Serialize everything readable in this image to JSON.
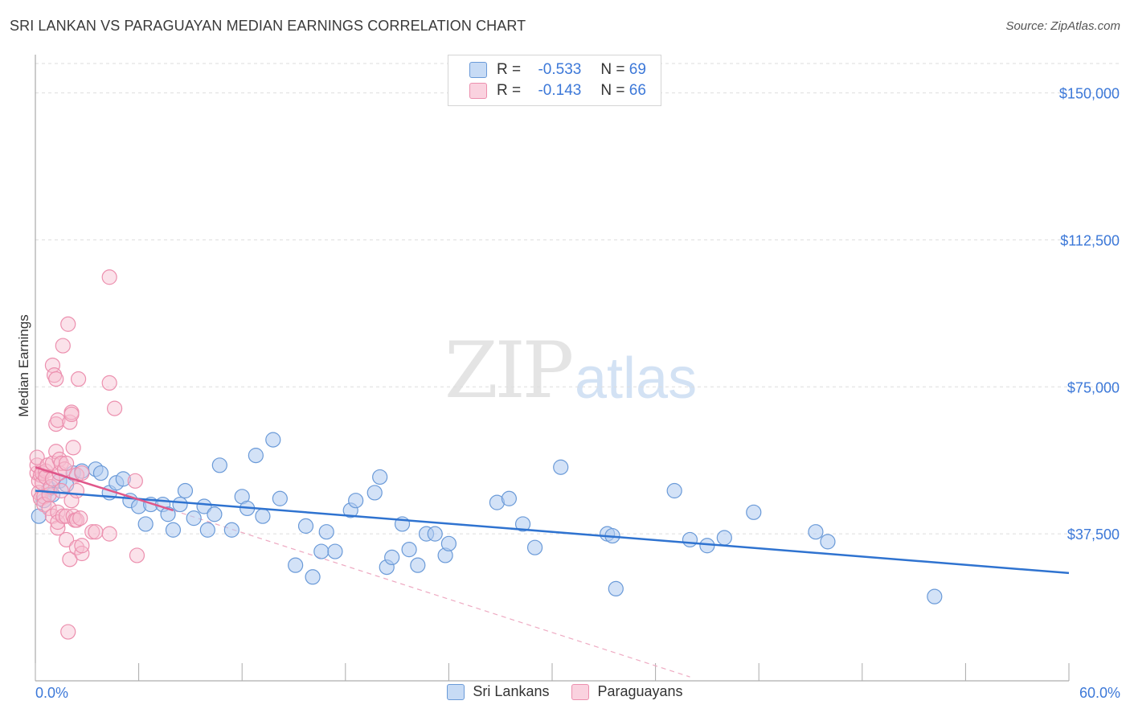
{
  "title": "SRI LANKAN VS PARAGUAYAN MEDIAN EARNINGS CORRELATION CHART",
  "source": "Source: ZipAtlas.com",
  "watermark": {
    "zip": "ZIP",
    "atlas": "atlas"
  },
  "legend": {
    "rows": [
      {
        "r_label": "R =",
        "r_value": "-0.533",
        "n_label": "N =",
        "n_value": "69"
      },
      {
        "r_label": "R =",
        "r_value": "-0.143",
        "n_label": "N =",
        "n_value": "66"
      }
    ]
  },
  "bottom_legend": {
    "series1": "Sri Lankans",
    "series2": "Paraguayans"
  },
  "colors": {
    "blue_fill": "#aecbf0",
    "blue_stroke": "#6a9ad8",
    "blue_line": "#2f73d0",
    "pink_fill": "#f7bfd0",
    "pink_stroke": "#ec8fae",
    "pink_line": "#e0578a",
    "tick_color": "#3c78d8",
    "grid": "#dddddd"
  },
  "chart_data": {
    "type": "scatter",
    "title": "SRI LANKAN VS PARAGUAYAN MEDIAN EARNINGS CORRELATION CHART",
    "xlabel": "",
    "ylabel": "Median Earnings",
    "xlim": [
      0,
      60
    ],
    "ylim": [
      0,
      157500
    ],
    "x_tick_labels": [
      "0.0%",
      "60.0%"
    ],
    "y_ticks": [
      37500,
      75000,
      112500,
      150000
    ],
    "y_tick_labels": [
      "$37,500",
      "$75,000",
      "$112,500",
      "$150,000"
    ],
    "grid": true,
    "series": [
      {
        "name": "Sri Lankans",
        "trend": {
          "x": [
            0,
            60
          ],
          "y": [
            48500,
            27500
          ]
        },
        "points": [
          [
            0.2,
            42000
          ],
          [
            0.5,
            46000
          ],
          [
            0.8,
            49000
          ],
          [
            1.0,
            47500
          ],
          [
            1.4,
            51000
          ],
          [
            1.8,
            50000
          ],
          [
            2.2,
            53000
          ],
          [
            2.7,
            53500
          ],
          [
            3.5,
            54000
          ],
          [
            3.8,
            53000
          ],
          [
            4.3,
            48000
          ],
          [
            4.7,
            50500
          ],
          [
            5.1,
            51500
          ],
          [
            5.5,
            46000
          ],
          [
            6.0,
            44500
          ],
          [
            6.4,
            40000
          ],
          [
            6.7,
            45000
          ],
          [
            7.4,
            45000
          ],
          [
            7.7,
            42500
          ],
          [
            8.0,
            38500
          ],
          [
            8.4,
            45000
          ],
          [
            8.7,
            48500
          ],
          [
            9.2,
            41500
          ],
          [
            9.8,
            44500
          ],
          [
            10.0,
            38500
          ],
          [
            10.4,
            42500
          ],
          [
            10.7,
            55000
          ],
          [
            11.4,
            38500
          ],
          [
            12.0,
            47000
          ],
          [
            12.3,
            44000
          ],
          [
            12.8,
            57500
          ],
          [
            13.2,
            42000
          ],
          [
            13.8,
            61500
          ],
          [
            14.2,
            46500
          ],
          [
            15.1,
            29500
          ],
          [
            15.7,
            39500
          ],
          [
            16.1,
            26500
          ],
          [
            16.6,
            33000
          ],
          [
            16.9,
            38000
          ],
          [
            17.4,
            33000
          ],
          [
            18.3,
            43500
          ],
          [
            18.6,
            46000
          ],
          [
            19.7,
            48000
          ],
          [
            20.0,
            52000
          ],
          [
            20.4,
            29000
          ],
          [
            20.7,
            31500
          ],
          [
            21.3,
            40000
          ],
          [
            21.7,
            33500
          ],
          [
            22.2,
            29500
          ],
          [
            22.7,
            37500
          ],
          [
            23.2,
            37500
          ],
          [
            23.8,
            32000
          ],
          [
            24.0,
            35000
          ],
          [
            26.8,
            45500
          ],
          [
            27.5,
            46500
          ],
          [
            28.3,
            40000
          ],
          [
            29.0,
            34000
          ],
          [
            30.5,
            54500
          ],
          [
            33.2,
            37500
          ],
          [
            33.5,
            37000
          ],
          [
            33.7,
            23500
          ],
          [
            37.1,
            48500
          ],
          [
            38.0,
            36000
          ],
          [
            39.0,
            34500
          ],
          [
            40.0,
            36500
          ],
          [
            41.7,
            43000
          ],
          [
            45.3,
            38000
          ],
          [
            46.0,
            35500
          ],
          [
            52.2,
            21500
          ]
        ]
      },
      {
        "name": "Paraguayans",
        "trend": {
          "x": [
            0,
            8
          ],
          "y": [
            54500,
            43500
          ]
        },
        "trend_extended": {
          "x": [
            8,
            38
          ],
          "y": [
            43500,
            1000
          ]
        },
        "points": [
          [
            0.1,
            53000
          ],
          [
            0.1,
            55000
          ],
          [
            0.1,
            57000
          ],
          [
            0.2,
            51000
          ],
          [
            0.2,
            48000
          ],
          [
            0.3,
            46500
          ],
          [
            0.3,
            52500
          ],
          [
            0.4,
            50500
          ],
          [
            0.4,
            53000
          ],
          [
            0.5,
            47000
          ],
          [
            0.5,
            45000
          ],
          [
            0.6,
            53500
          ],
          [
            0.6,
            52000
          ],
          [
            0.7,
            55000
          ],
          [
            0.8,
            44000
          ],
          [
            0.8,
            47500
          ],
          [
            0.9,
            49500
          ],
          [
            1.0,
            42000
          ],
          [
            1.0,
            51500
          ],
          [
            1.0,
            55500
          ],
          [
            1.0,
            80500
          ],
          [
            1.1,
            78000
          ],
          [
            1.2,
            65500
          ],
          [
            1.2,
            58500
          ],
          [
            1.2,
            77000
          ],
          [
            1.3,
            39000
          ],
          [
            1.3,
            43000
          ],
          [
            1.3,
            40500
          ],
          [
            1.3,
            66500
          ],
          [
            1.4,
            56500
          ],
          [
            1.4,
            53000
          ],
          [
            1.5,
            55500
          ],
          [
            1.5,
            48500
          ],
          [
            1.6,
            42000
          ],
          [
            1.6,
            85500
          ],
          [
            1.7,
            54000
          ],
          [
            1.8,
            55500
          ],
          [
            1.8,
            36000
          ],
          [
            1.8,
            42000
          ],
          [
            1.9,
            91000
          ],
          [
            1.9,
            12500
          ],
          [
            2.0,
            31000
          ],
          [
            2.0,
            66000
          ],
          [
            2.1,
            68500
          ],
          [
            2.1,
            68000
          ],
          [
            2.1,
            46000
          ],
          [
            2.2,
            42000
          ],
          [
            2.2,
            59500
          ],
          [
            2.3,
            41000
          ],
          [
            2.4,
            34000
          ],
          [
            2.4,
            48500
          ],
          [
            2.4,
            41000
          ],
          [
            2.4,
            52500
          ],
          [
            2.5,
            77000
          ],
          [
            2.6,
            41500
          ],
          [
            2.7,
            32500
          ],
          [
            2.7,
            53000
          ],
          [
            2.7,
            34500
          ],
          [
            3.3,
            38000
          ],
          [
            3.5,
            38000
          ],
          [
            4.3,
            103000
          ],
          [
            4.3,
            37500
          ],
          [
            4.3,
            76000
          ],
          [
            4.6,
            69500
          ],
          [
            5.8,
            51000
          ],
          [
            5.9,
            32000
          ]
        ]
      }
    ]
  }
}
